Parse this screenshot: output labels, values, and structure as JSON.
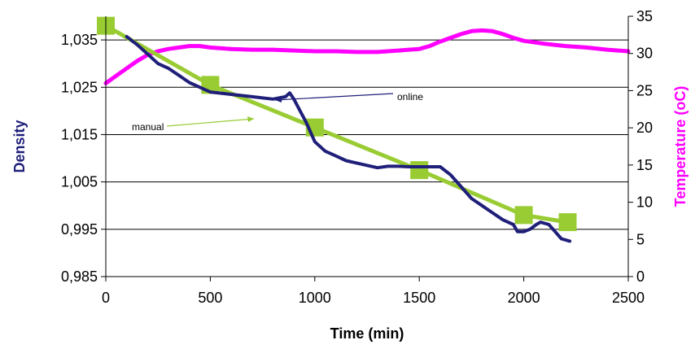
{
  "chart_data": {
    "type": "line",
    "title": "",
    "xlabel": "Time (min)",
    "ylabel_left": "Density",
    "ylabel_right": "Temperature (oC)",
    "xlim": [
      0,
      2500
    ],
    "ylim_left": [
      0.985,
      1.04
    ],
    "ylim_right": [
      0,
      35
    ],
    "x_ticks": [
      "0",
      "500",
      "1000",
      "1500",
      "2000",
      "2500"
    ],
    "x_tick_values": [
      0,
      500,
      1000,
      1500,
      2000,
      2500
    ],
    "y_left_ticks": [
      "0,985",
      "0,995",
      "1,005",
      "1,015",
      "1,025",
      "1,035"
    ],
    "y_left_tick_values": [
      0.985,
      0.995,
      1.005,
      1.015,
      1.025,
      1.035
    ],
    "y_right_ticks": [
      "0",
      "5",
      "10",
      "15",
      "20",
      "25",
      "30",
      "35"
    ],
    "y_right_tick_values": [
      0,
      5,
      10,
      15,
      20,
      25,
      30,
      35
    ],
    "grid": true,
    "annotations": [
      {
        "text": "manual",
        "series": "manual"
      },
      {
        "text": "online",
        "series": "online"
      }
    ],
    "series": [
      {
        "key": "manual",
        "axis": "left",
        "color": "#99cc33",
        "marker": "square",
        "x": [
          0,
          500,
          1000,
          1500,
          2000,
          2210
        ],
        "y": [
          1.038,
          1.0255,
          1.0165,
          1.0075,
          0.998,
          0.9965
        ]
      },
      {
        "key": "online",
        "axis": "left",
        "color": "#1f1f7a",
        "marker": "none",
        "x": [
          100,
          150,
          200,
          250,
          300,
          350,
          400,
          450,
          500,
          600,
          700,
          800,
          860,
          880,
          900,
          930,
          960,
          1000,
          1050,
          1100,
          1150,
          1200,
          1250,
          1300,
          1350,
          1400,
          1450,
          1500,
          1550,
          1600,
          1650,
          1700,
          1750,
          1800,
          1850,
          1900,
          1950,
          1970,
          2000,
          2030,
          2060,
          2080,
          2120,
          2150,
          2180,
          2220
        ],
        "y": [
          1.0357,
          1.034,
          1.032,
          1.03,
          1.029,
          1.0275,
          1.026,
          1.025,
          1.024,
          1.0235,
          1.023,
          1.0225,
          1.023,
          1.0238,
          1.0225,
          1.02,
          1.0175,
          1.0135,
          1.0115,
          1.0105,
          1.0095,
          1.009,
          1.0085,
          1.008,
          1.0083,
          1.0083,
          1.0082,
          1.0082,
          1.0082,
          1.0082,
          1.0065,
          1.004,
          1.0015,
          1.0,
          0.9985,
          0.997,
          0.996,
          0.9945,
          0.9945,
          0.995,
          0.996,
          0.9965,
          0.996,
          0.9945,
          0.993,
          0.9925
        ]
      },
      {
        "key": "temperature",
        "axis": "right",
        "color": "#ff00ff",
        "marker": "none",
        "x": [
          0,
          50,
          100,
          150,
          200,
          250,
          300,
          350,
          400,
          450,
          500,
          600,
          700,
          800,
          900,
          1000,
          1100,
          1200,
          1300,
          1400,
          1500,
          1550,
          1600,
          1650,
          1700,
          1750,
          1800,
          1850,
          1900,
          1950,
          2000,
          2100,
          2200,
          2300,
          2400,
          2500
        ],
        "y": [
          26,
          27,
          28,
          29,
          29.8,
          30.3,
          30.6,
          30.8,
          31,
          31,
          30.8,
          30.6,
          30.5,
          30.5,
          30.4,
          30.3,
          30.3,
          30.2,
          30.2,
          30.4,
          30.6,
          31.0,
          31.6,
          32.1,
          32.6,
          33.0,
          33.1,
          33.0,
          32.6,
          32.1,
          31.7,
          31.3,
          31.0,
          30.8,
          30.5,
          30.3
        ]
      }
    ]
  }
}
